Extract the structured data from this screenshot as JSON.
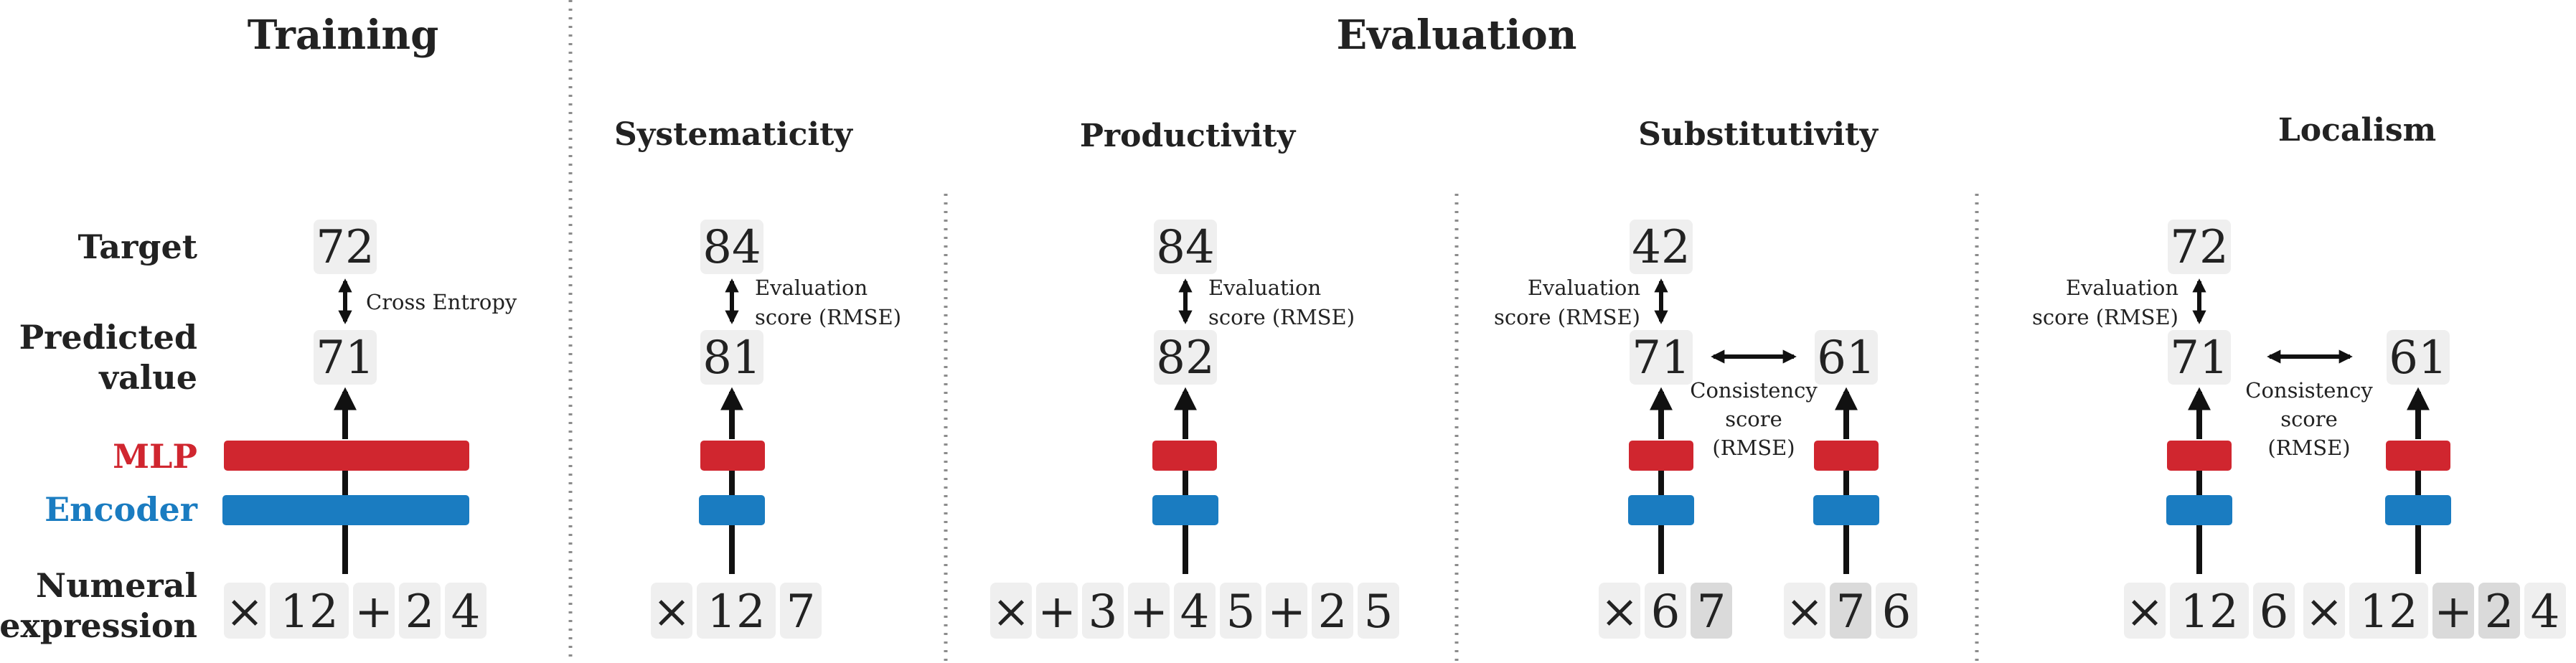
{
  "colors": {
    "mlp": "#d0262f",
    "encoder": "#1a7cc1",
    "token_bg": "#efefef",
    "token_bg_dark": "#dadada",
    "divider": "#8c8c8c"
  },
  "titles": {
    "training": "Training",
    "evaluation": "Evaluation",
    "systematicity": "Systematicity",
    "productivity": "Productivity",
    "substitutivity": "Substitutivity",
    "localism": "Localism"
  },
  "row_labels": {
    "target": "Target",
    "predicted_line1": "Predicted",
    "predicted_line2": "value",
    "mlp": "MLP",
    "encoder": "Encoder",
    "numeral_line1": "Numeral",
    "numeral_line2": "expression"
  },
  "notes": {
    "cross_entropy": "Cross Entropy",
    "evaluation_score_line1": "Evaluation",
    "evaluation_score_line2": "score (RMSE)",
    "consistency_line1": "Consistency",
    "consistency_line2": "score",
    "consistency_line3": "(RMSE)"
  },
  "training": {
    "target": "72",
    "predicted": "71",
    "tokens": [
      "×",
      "12",
      "+",
      "2",
      "4"
    ]
  },
  "systematicity": {
    "target": "84",
    "predicted": "81",
    "tokens": [
      "×",
      "12",
      "7"
    ]
  },
  "productivity": {
    "target": "84",
    "predicted": "82",
    "tokens": [
      "×",
      "+",
      "3",
      "+",
      "4",
      "5",
      "+",
      "2",
      "5"
    ]
  },
  "substitutivity": {
    "target": "42",
    "predicted_left": "71",
    "predicted_right": "61",
    "tokens_left": [
      "×",
      "6",
      "7"
    ],
    "tokens_right": [
      "×",
      "7",
      "6"
    ]
  },
  "localism": {
    "target": "72",
    "predicted_left": "71",
    "predicted_right": "61",
    "tokens_left": [
      "×",
      "12",
      "6"
    ],
    "tokens_right": [
      "×",
      "12",
      "+",
      "2",
      "4"
    ]
  }
}
